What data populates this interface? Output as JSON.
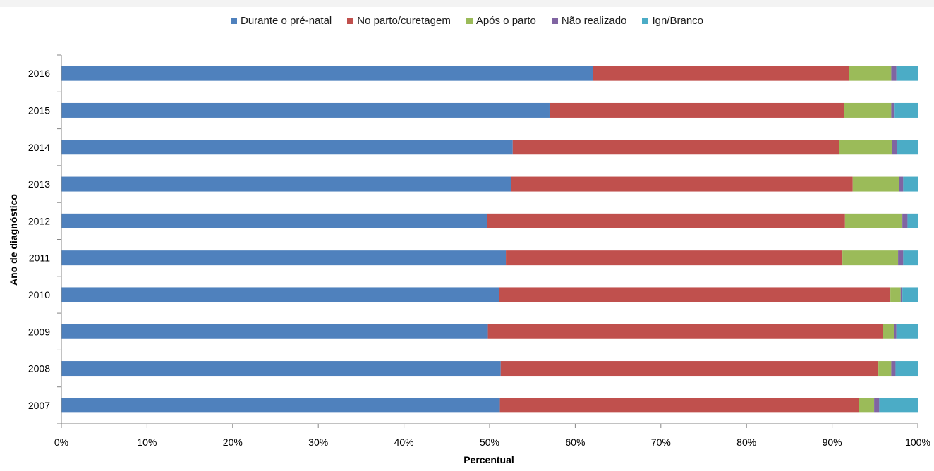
{
  "chart_data": {
    "type": "bar",
    "orientation": "horizontal",
    "stacked": "percent",
    "categories": [
      "2007",
      "2008",
      "2009",
      "2010",
      "2011",
      "2012",
      "2013",
      "2014",
      "2015",
      "2016"
    ],
    "series": [
      {
        "name": "Durante o pré-natal",
        "color": "#4f81bd",
        "values": [
          51.2,
          51.3,
          49.8,
          51.1,
          51.9,
          49.7,
          52.5,
          52.7,
          57.0,
          62.1
        ]
      },
      {
        "name": "No parto/curetagem",
        "color": "#c0504d",
        "values": [
          41.9,
          44.1,
          46.1,
          45.7,
          39.3,
          41.8,
          39.9,
          38.1,
          34.4,
          29.9
        ]
      },
      {
        "name": "Após o parto",
        "color": "#9bbb59",
        "values": [
          1.8,
          1.5,
          1.3,
          1.2,
          6.5,
          6.7,
          5.4,
          6.2,
          5.5,
          4.9
        ]
      },
      {
        "name": "Não realizado",
        "color": "#8064a2",
        "values": [
          0.6,
          0.5,
          0.3,
          0.2,
          0.6,
          0.6,
          0.5,
          0.6,
          0.4,
          0.6
        ]
      },
      {
        "name": "Ign/Branco",
        "color": "#4bacc6",
        "values": [
          4.5,
          2.6,
          2.5,
          1.8,
          1.7,
          1.2,
          1.7,
          2.4,
          2.7,
          2.5
        ]
      }
    ],
    "xlabel": "Percentual",
    "ylabel": "Ano de diagnóstico",
    "xlim": [
      0,
      100
    ],
    "xticks": [
      "0%",
      "10%",
      "20%",
      "30%",
      "40%",
      "50%",
      "60%",
      "70%",
      "80%",
      "90%",
      "100%"
    ],
    "grid": false,
    "legend_position": "top"
  }
}
